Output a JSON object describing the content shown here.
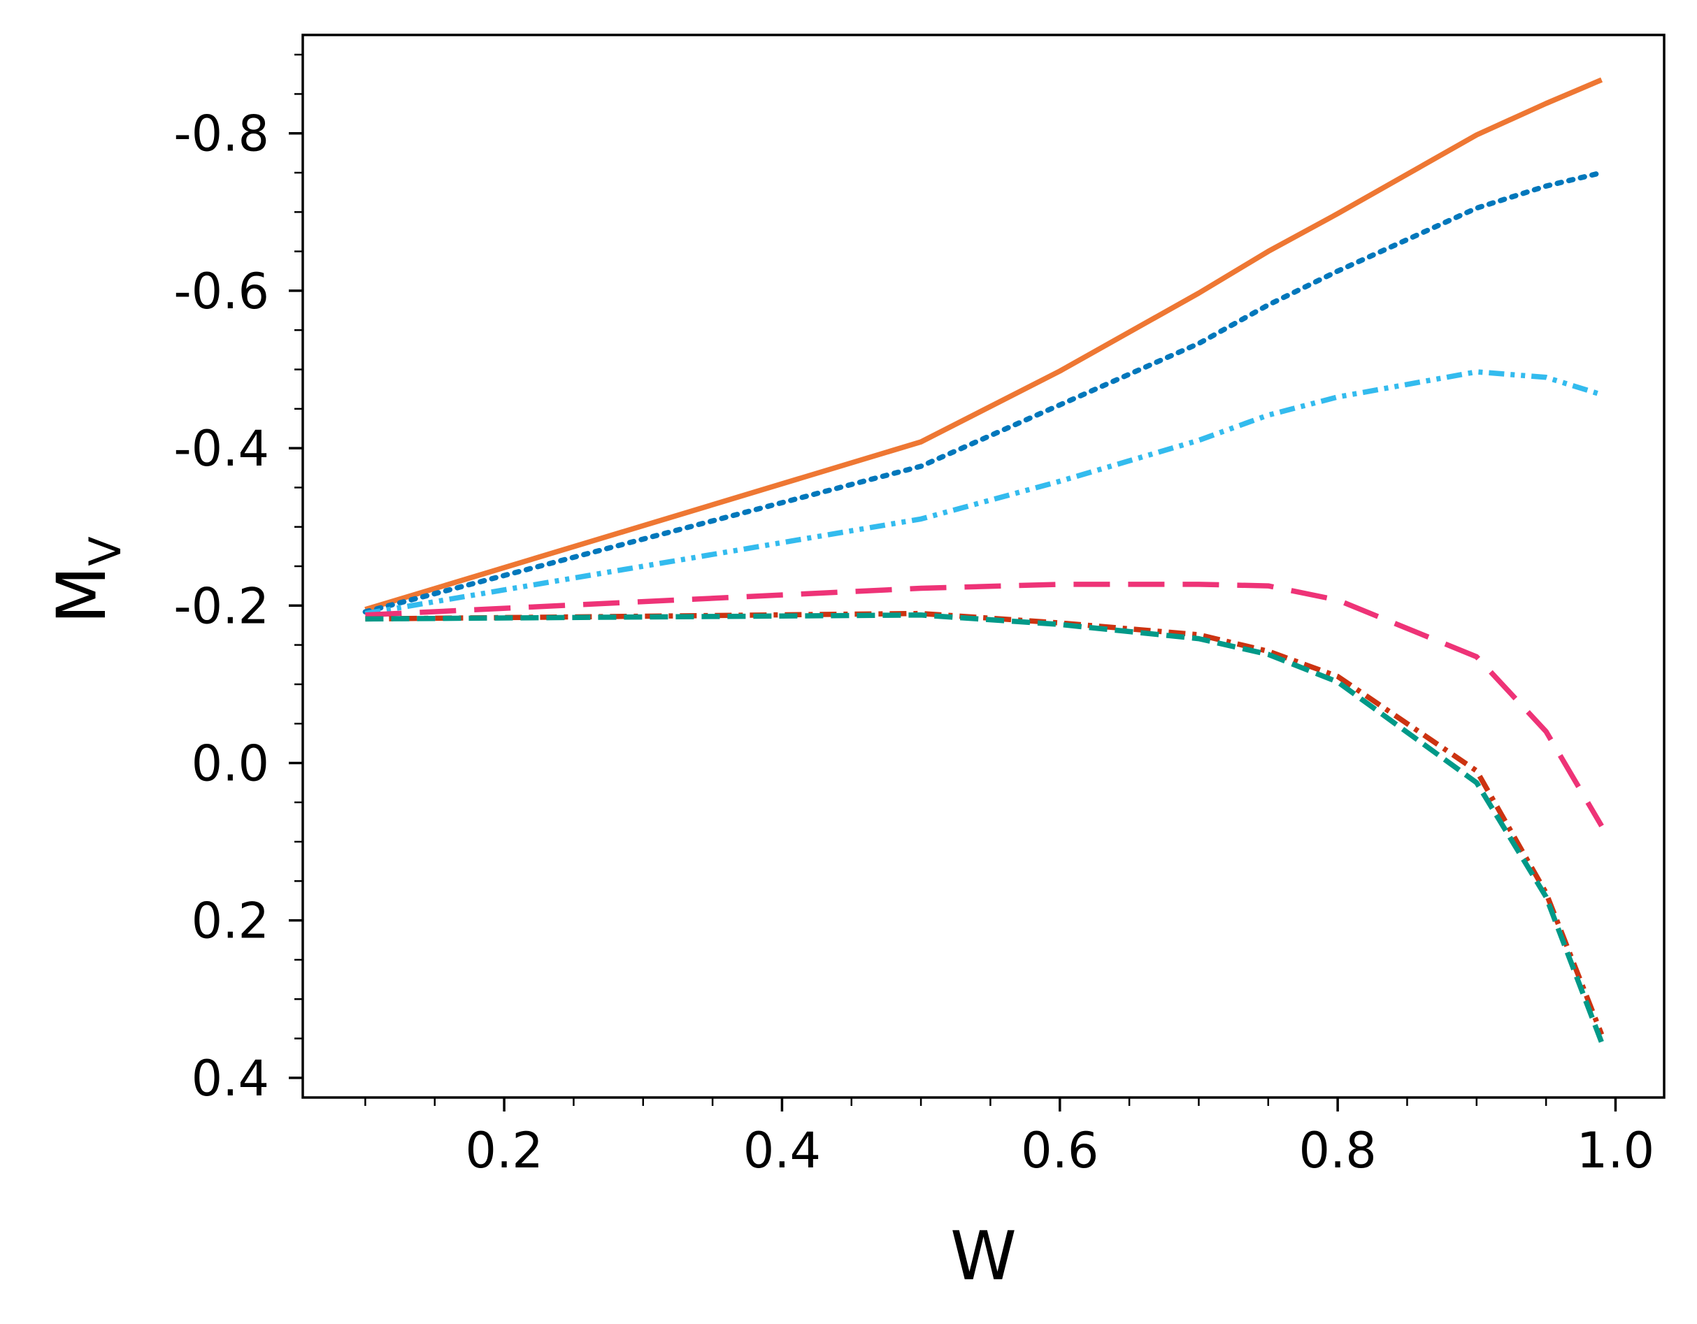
{
  "chart_data": {
    "type": "line",
    "title": "",
    "xlabel": "W",
    "ylabel": "M",
    "ylabel_subscript": "V",
    "xlim": [
      0.055,
      1.035
    ],
    "ylim": [
      0.425,
      -0.925
    ],
    "y_inverted": true,
    "grid": false,
    "legend": "none",
    "x_ticks": [
      0.2,
      0.4,
      0.6,
      0.8,
      1.0
    ],
    "x_tick_labels": [
      "0.2",
      "0.4",
      "0.6",
      "0.8",
      "1.0"
    ],
    "x_minor_ticks": [
      0.1,
      0.15,
      0.25,
      0.3,
      0.35,
      0.45,
      0.5,
      0.55,
      0.65,
      0.7,
      0.75,
      0.85,
      0.9,
      0.95
    ],
    "y_ticks": [
      -0.8,
      -0.6,
      -0.4,
      -0.2,
      0.0,
      0.2,
      0.4
    ],
    "y_tick_labels": [
      "-0.8",
      "-0.6",
      "-0.4",
      "-0.2",
      "0.0",
      "0.2",
      "0.4"
    ],
    "y_minor_step": 0.05,
    "series": [
      {
        "color": "#EE7733",
        "dash": "solid",
        "x": [
          0.1,
          0.5,
          0.6,
          0.7,
          0.75,
          0.8,
          0.9,
          0.95,
          0.99
        ],
        "y": [
          -0.195,
          -0.408,
          -0.498,
          -0.597,
          -0.65,
          -0.698,
          -0.798,
          -0.838,
          -0.868
        ]
      },
      {
        "color": "#0077BB",
        "dash": "dotted",
        "x": [
          0.1,
          0.5,
          0.6,
          0.7,
          0.75,
          0.8,
          0.9,
          0.95,
          0.99
        ],
        "y": [
          -0.192,
          -0.377,
          -0.455,
          -0.533,
          -0.582,
          -0.625,
          -0.705,
          -0.733,
          -0.75
        ]
      },
      {
        "color": "#33BBEE",
        "dash": "dashdotdot",
        "x": [
          0.1,
          0.5,
          0.6,
          0.7,
          0.75,
          0.8,
          0.9,
          0.95,
          0.99
        ],
        "y": [
          -0.19,
          -0.31,
          -0.358,
          -0.41,
          -0.442,
          -0.465,
          -0.497,
          -0.49,
          -0.468
        ]
      },
      {
        "color": "#EE3377",
        "dash": "longdash",
        "x": [
          0.1,
          0.5,
          0.6,
          0.7,
          0.75,
          0.8,
          0.9,
          0.95,
          0.99
        ],
        "y": [
          -0.188,
          -0.222,
          -0.227,
          -0.227,
          -0.225,
          -0.207,
          -0.135,
          -0.04,
          0.08
        ]
      },
      {
        "color": "#CC3311",
        "dash": "dashdot",
        "x": [
          0.1,
          0.5,
          0.6,
          0.7,
          0.75,
          0.8,
          0.9,
          0.95,
          0.99
        ],
        "y": [
          -0.183,
          -0.19,
          -0.178,
          -0.163,
          -0.142,
          -0.11,
          0.01,
          0.165,
          0.345
        ]
      },
      {
        "color": "#009988",
        "dash": "dashed",
        "x": [
          0.1,
          0.5,
          0.6,
          0.7,
          0.75,
          0.8,
          0.9,
          0.95,
          0.99
        ],
        "y": [
          -0.183,
          -0.188,
          -0.176,
          -0.158,
          -0.138,
          -0.103,
          0.025,
          0.17,
          0.355
        ]
      }
    ]
  }
}
